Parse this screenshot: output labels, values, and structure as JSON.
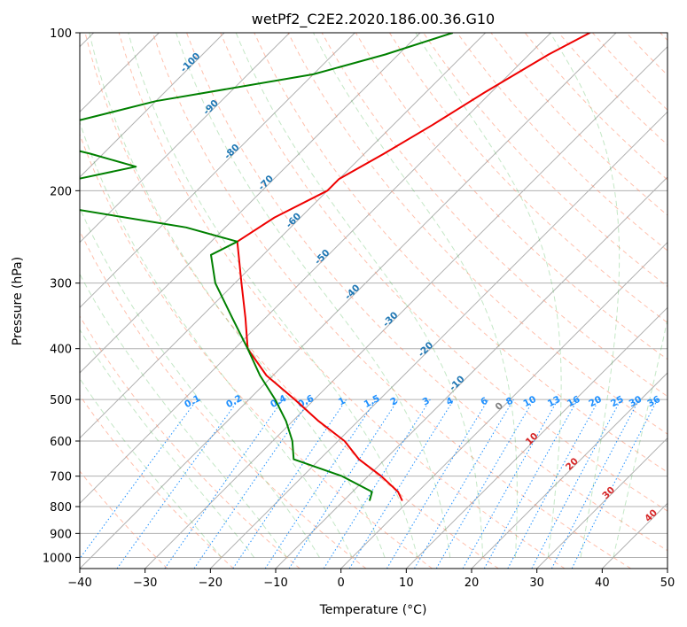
{
  "chart_data": {
    "type": "line",
    "title": "wetPf2_C2E2.2020.186.00.36.G10",
    "xlabel": "Temperature (°C)",
    "ylabel": "Pressure (hPa)",
    "xlim": [
      -40,
      50
    ],
    "ylim": [
      1050,
      100
    ],
    "y_scale": "log",
    "skew_t": true,
    "grid": true,
    "x_ticks": [
      "−40",
      "−30",
      "−20",
      "−10",
      "0",
      "10",
      "20",
      "30",
      "40",
      "50"
    ],
    "x_tick_values": [
      -40,
      -30,
      -20,
      -10,
      0,
      10,
      20,
      30,
      40,
      50
    ],
    "y_ticks": [
      "100",
      "200",
      "300",
      "400",
      "500",
      "600",
      "700",
      "800",
      "900",
      "1000"
    ],
    "y_tick_values": [
      100,
      200,
      300,
      400,
      500,
      600,
      700,
      800,
      900,
      1000
    ],
    "series": [
      {
        "color": "#ee0000",
        "points": [
          [
            100,
            -44
          ],
          [
            110,
            -47
          ],
          [
            130,
            -51
          ],
          [
            150,
            -54
          ],
          [
            170,
            -57
          ],
          [
            190,
            -60
          ],
          [
            200,
            -60
          ],
          [
            225,
            -64
          ],
          [
            250,
            -66
          ],
          [
            300,
            -59
          ],
          [
            350,
            -53
          ],
          [
            400,
            -48
          ],
          [
            450,
            -41
          ],
          [
            500,
            -33
          ],
          [
            550,
            -26
          ],
          [
            600,
            -19
          ],
          [
            650,
            -14
          ],
          [
            700,
            -8
          ],
          [
            750,
            -3
          ],
          [
            780,
            -1
          ]
        ]
      },
      {
        "color": "#008000",
        "points": [
          [
            100,
            -65
          ],
          [
            110,
            -72
          ],
          [
            120,
            -80
          ],
          [
            135,
            -100
          ],
          [
            150,
            -111
          ],
          [
            160,
            -113
          ],
          [
            170,
            -102
          ],
          [
            180,
            -93
          ],
          [
            190,
            -100
          ],
          [
            198,
            -118
          ],
          [
            205,
            -113
          ],
          [
            215,
            -98
          ],
          [
            235,
            -76
          ],
          [
            250,
            -66
          ],
          [
            265,
            -68
          ],
          [
            300,
            -63
          ],
          [
            350,
            -55
          ],
          [
            400,
            -48
          ],
          [
            450,
            -42
          ],
          [
            500,
            -36
          ],
          [
            550,
            -31
          ],
          [
            600,
            -27
          ],
          [
            650,
            -24
          ],
          [
            700,
            -14
          ],
          [
            750,
            -7
          ],
          [
            780,
            -6
          ]
        ]
      }
    ],
    "isotherm_labels": [
      "-100",
      "-90",
      "-80",
      "-70",
      "-60",
      "-50",
      "-40",
      "-30",
      "-20",
      "-10",
      "0",
      "10",
      "20",
      "30",
      "40"
    ],
    "mixing_ratio_labels": [
      "0.1",
      "0.2",
      "0.4",
      "0.6",
      "1",
      "1.5",
      "2",
      "3",
      "4",
      "6",
      "8",
      "10",
      "13",
      "16",
      "20",
      "25",
      "30",
      "36"
    ],
    "colors": {
      "temperature": "#ee0000",
      "dewpoint": "#008000",
      "isotherm_cold_label": "#1f77b4",
      "isotherm_warm_label": "#d62728",
      "isotherm_zero_label": "#808080",
      "mixing_ratio": "#1e90ff",
      "dry_adiabat": "#ff8c69",
      "moist_adiabat": "#3cb043",
      "grid": "#b0b0b0"
    }
  }
}
